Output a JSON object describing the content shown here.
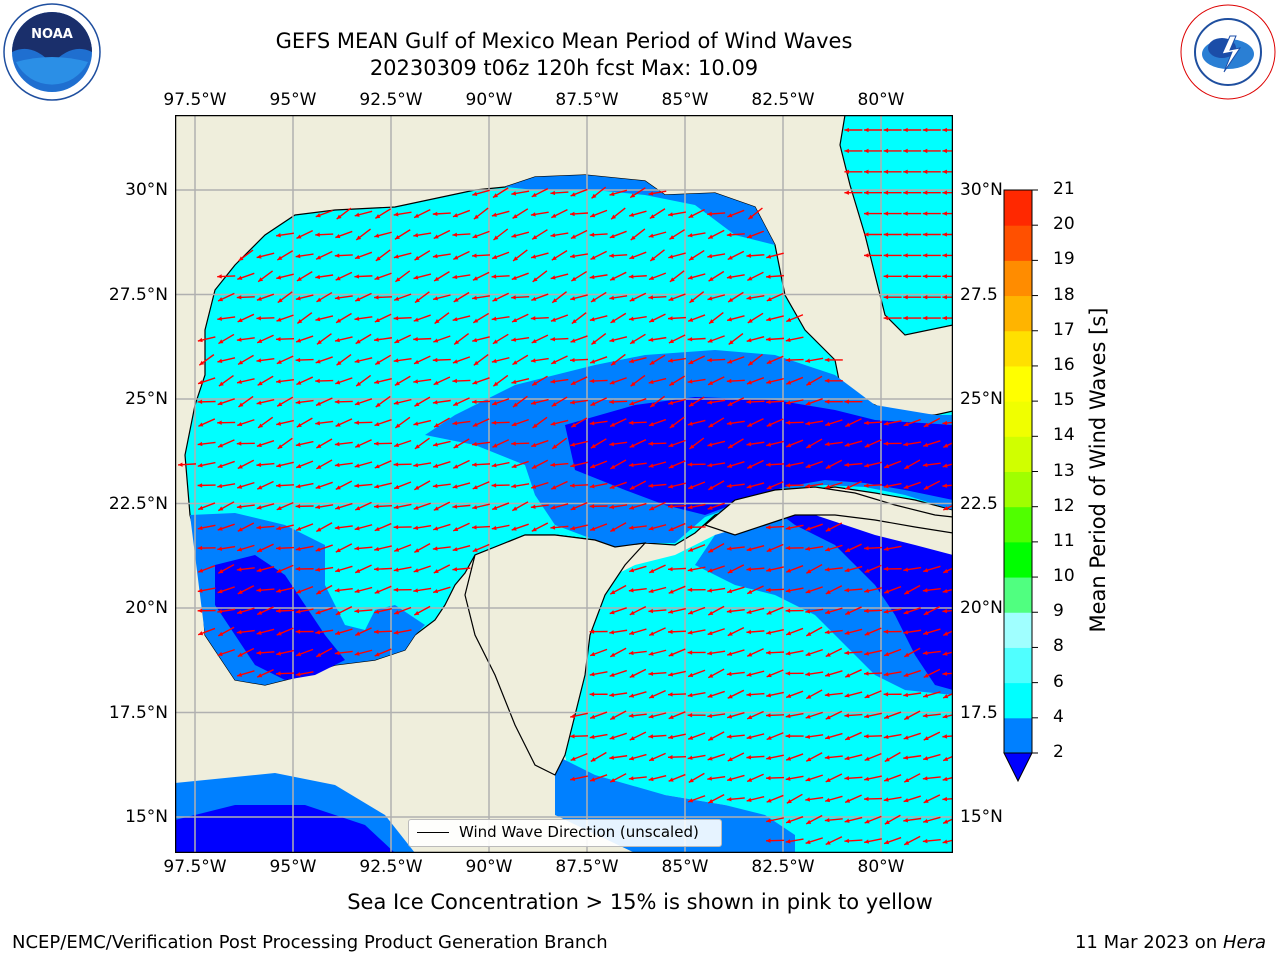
{
  "header": {
    "title_line1": "GEFS MEAN Gulf of Mexico Mean Period of Wind Waves",
    "title_line2": "20230309 t06z 120h fcst   Max: 10.09"
  },
  "logos": {
    "left": "NOAA",
    "right": "NATIONAL WEATHER SERVICE"
  },
  "map": {
    "lon_ticks": [
      "97.5°W",
      "95°W",
      "92.5°W",
      "90°W",
      "87.5°W",
      "85°W",
      "82.5°W",
      "80°W"
    ],
    "lat_ticks_left": [
      "30°N",
      "27.5°N",
      "25°N",
      "22.5°N",
      "20°N",
      "17.5°N",
      "15°N"
    ],
    "lat_ticks_right": [
      "30°N",
      "27.5",
      "25°N",
      "22.5",
      "20°N",
      "17.5",
      "15°N"
    ],
    "legend_label": "Wind Wave Direction (unscaled)",
    "colors": {
      "land": "#efeedc",
      "level_2_4": "#0080ff",
      "level_4_6": "#00ffff",
      "level_under_2": "#0000ff",
      "arrow": "#ff0000"
    }
  },
  "colorbar": {
    "title": "Mean Period of Wind Waves [s]",
    "levels": [
      "2",
      "4",
      "6",
      "8",
      "9",
      "10",
      "11",
      "12",
      "13",
      "14",
      "15",
      "16",
      "17",
      "18",
      "19",
      "20",
      "21"
    ],
    "colors": [
      "#0080ff",
      "#00ffff",
      "#50ffff",
      "#a0ffff",
      "#50ff80",
      "#00ff00",
      "#50ff00",
      "#a0ff00",
      "#d0ff00",
      "#f0ff00",
      "#ffff00",
      "#ffe000",
      "#ffb400",
      "#ff8c00",
      "#ff5000",
      "#ff2800",
      "#ff0000"
    ],
    "under_color": "#0000ff"
  },
  "notes": {
    "sea_ice": "Sea Ice Concentration > 15% is shown in pink to yellow"
  },
  "footer": {
    "left": "NCEP/EMC/Verification Post Processing Product Generation Branch",
    "right_date": "11 Mar 2023 on ",
    "right_machine": "Hera"
  }
}
